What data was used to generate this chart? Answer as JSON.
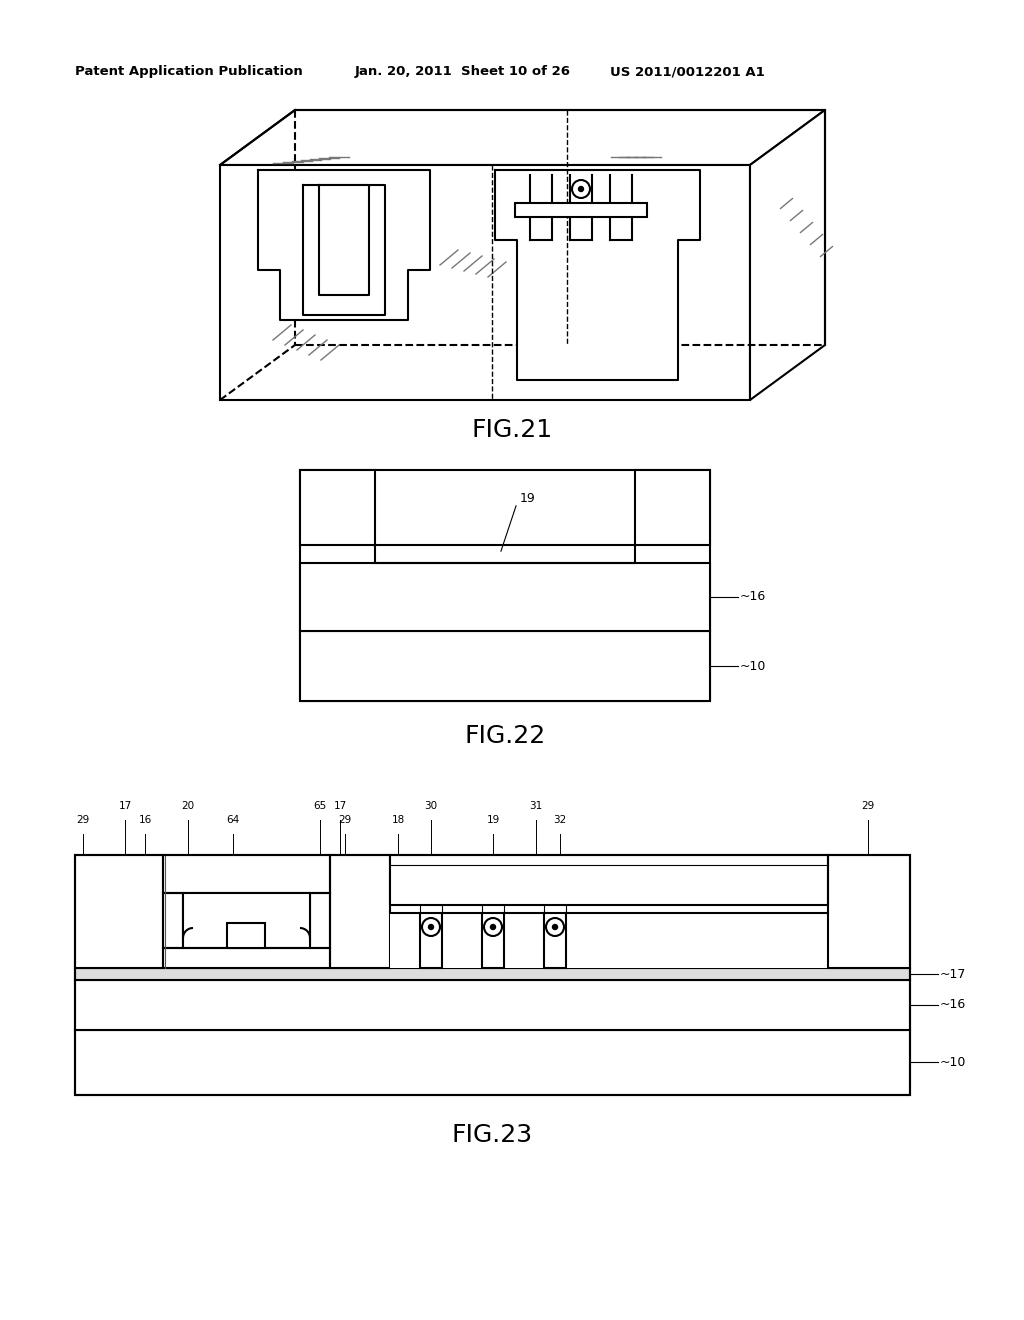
{
  "background_color": "#ffffff",
  "header_left": "Patent Application Publication",
  "header_mid": "Jan. 20, 2011  Sheet 10 of 26",
  "header_right": "US 2011/0012201 A1",
  "fig21_label": "FIG.21",
  "fig22_label": "FIG.22",
  "fig23_label": "FIG.23",
  "line_color": "#000000",
  "fig_label_fontsize": 18
}
